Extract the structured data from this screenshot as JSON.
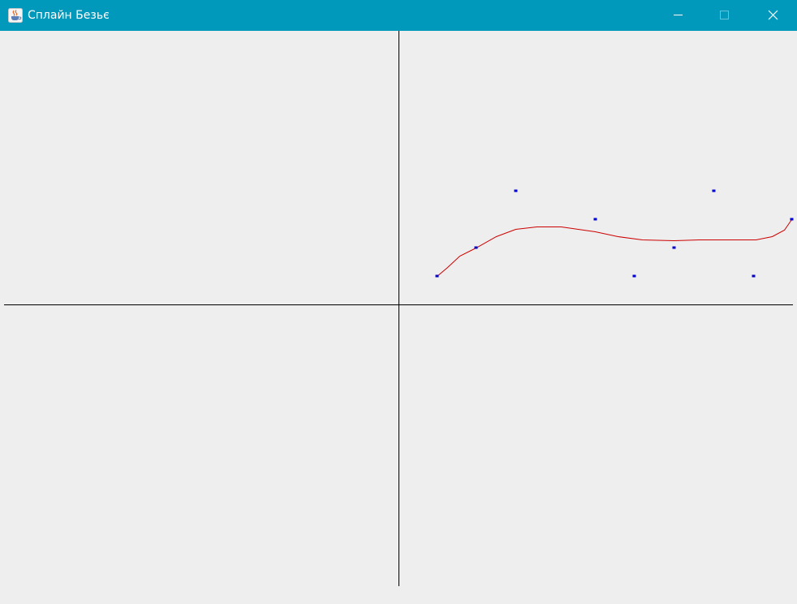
{
  "window": {
    "title": "Сплайн Безьє",
    "icon": "java-cup-icon",
    "buttons": [
      "minimize-icon",
      "maximize-icon",
      "close-icon"
    ]
  },
  "colors": {
    "titlebar": "#0099bc",
    "background": "#eeeeee",
    "axes": "#000000",
    "curve": "#cc0000",
    "control_points": "#0000cc"
  },
  "plot": {
    "origin": [
      0,
      0
    ],
    "x_range": [
      -486,
      486
    ],
    "y_range": [
      -346,
      337
    ],
    "control_points": [
      [
        47,
        35
      ],
      [
        95,
        70
      ],
      [
        144,
        140
      ],
      [
        242,
        105
      ],
      [
        290,
        35
      ],
      [
        339,
        70
      ],
      [
        388,
        140
      ],
      [
        437,
        35
      ],
      [
        484,
        105
      ]
    ],
    "curve": [
      [
        47,
        35
      ],
      [
        60,
        46
      ],
      [
        75,
        60
      ],
      [
        95,
        70
      ],
      [
        120,
        84
      ],
      [
        144,
        93
      ],
      [
        170,
        96
      ],
      [
        200,
        96
      ],
      [
        242,
        90
      ],
      [
        270,
        84
      ],
      [
        300,
        80
      ],
      [
        339,
        79
      ],
      [
        370,
        80
      ],
      [
        410,
        80
      ],
      [
        440,
        80
      ],
      [
        460,
        84
      ],
      [
        475,
        92
      ],
      [
        484,
        105
      ]
    ]
  }
}
